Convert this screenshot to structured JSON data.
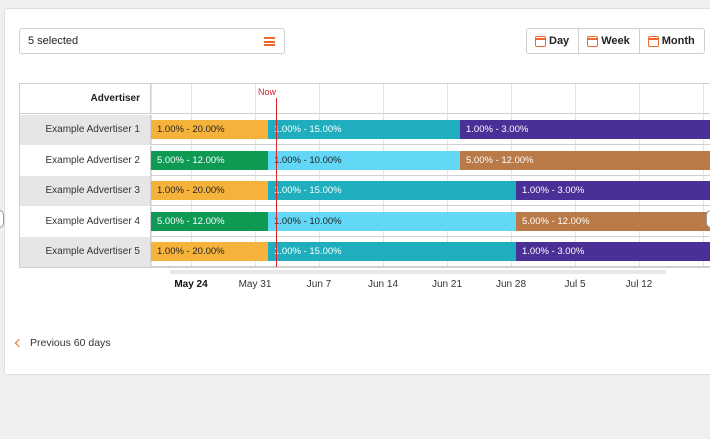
{
  "filter": {
    "selected_label": "5 selected",
    "icon": "list-icon"
  },
  "period_buttons": [
    {
      "label": "Day",
      "icon": "calendar-day-icon"
    },
    {
      "label": "Week",
      "icon": "calendar-week-icon"
    },
    {
      "label": "Month",
      "icon": "calendar-month-icon"
    }
  ],
  "gantt": {
    "column_header": "Advertiser",
    "now_label": "Now",
    "axis_labels": [
      {
        "label": "May 24",
        "bold": true
      },
      {
        "label": "May 31",
        "bold": false
      },
      {
        "label": "Jun 7",
        "bold": false
      },
      {
        "label": "Jun 14",
        "bold": false
      },
      {
        "label": "Jun 21",
        "bold": false
      },
      {
        "label": "Jun 28",
        "bold": false
      },
      {
        "label": "Jul 5",
        "bold": false
      },
      {
        "label": "Jul 12",
        "bold": false
      }
    ],
    "rows": [
      {
        "name": "Example Advertiser 1",
        "bars": [
          {
            "label": "1.00% - 20.00%",
            "color": "#f6b33c"
          },
          {
            "label": "1.00% - 15.00%",
            "color": "#1faebd"
          },
          {
            "label": "1.00% - 3.00%",
            "color": "#4a2f96"
          }
        ]
      },
      {
        "name": "Example Advertiser 2",
        "bars": [
          {
            "label": "5.00% - 12.00%",
            "color": "#0f9a54"
          },
          {
            "label": "1.00% - 10.00%",
            "color": "#62d8f6"
          },
          {
            "label": "5.00% - 12.00%",
            "color": "#b97a47"
          }
        ]
      },
      {
        "name": "Example Advertiser 3",
        "bars": [
          {
            "label": "1.00% - 20.00%",
            "color": "#f6b33c"
          },
          {
            "label": "1.00% - 15.00%",
            "color": "#1faebd"
          },
          {
            "label": "1.00% - 3.00%",
            "color": "#4a2f96"
          }
        ]
      },
      {
        "name": "Example Advertiser 4",
        "bars": [
          {
            "label": "5.00% - 12.00%",
            "color": "#0f9a54"
          },
          {
            "label": "1.00% - 10.00%",
            "color": "#62d8f6"
          },
          {
            "label": "5.00% - 12.00%",
            "color": "#b97a47"
          }
        ]
      },
      {
        "name": "Example Advertiser 5",
        "bars": [
          {
            "label": "1.00% - 20.00%",
            "color": "#f6b33c"
          },
          {
            "label": "1.00% - 15.00%",
            "color": "#1faebd"
          },
          {
            "label": "1.00% - 3.00%",
            "color": "#4a2f96"
          }
        ]
      }
    ]
  },
  "footer": {
    "previous_label": "Previous 60 days",
    "icon": "chevron-left-icon"
  }
}
